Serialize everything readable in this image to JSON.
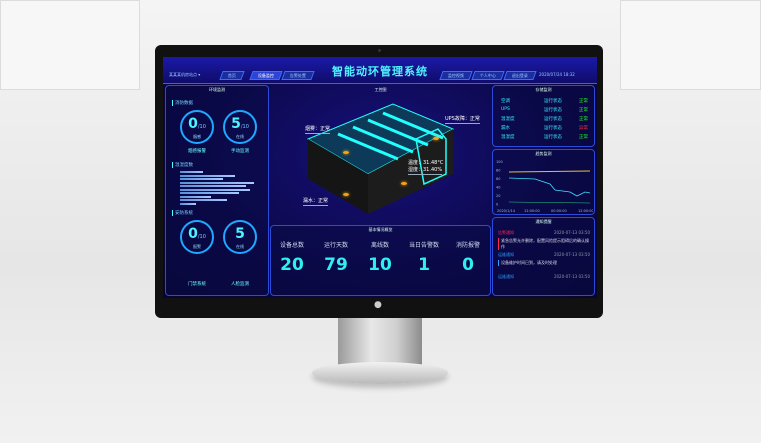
{
  "header": {
    "title": "智能动环管理系统",
    "location": "某某某机房站点 ▾",
    "datetime": "2020/07/24 18:32",
    "nav_left": [
      "首页",
      "设备监控",
      "告警处置"
    ],
    "nav_right": [
      "监控视频",
      "个人中心",
      "退出登录"
    ],
    "active": "设备监控"
  },
  "left": {
    "title": "环境监测",
    "fire": {
      "heading": "消防数据",
      "rings": [
        {
          "value": "0",
          "total": "/10",
          "unit": "烟感"
        },
        {
          "value": "5",
          "total": "/10",
          "unit": "在线"
        }
      ],
      "captions": [
        "烟感报警",
        "手动监测"
      ]
    },
    "bars": {
      "heading": "温湿度数",
      "values": [
        0.3,
        0.7,
        0.55,
        0.95,
        0.85,
        0.9,
        0.75,
        0.4,
        0.6,
        0.2
      ]
    },
    "security": {
      "heading": "安防系统",
      "rings": [
        {
          "value": "0",
          "total": "/10",
          "unit": "报警"
        },
        {
          "value": "5",
          "total": "",
          "unit": "在线"
        }
      ],
      "captions": [
        "门禁系统",
        "人脸监测"
      ]
    }
  },
  "center": {
    "title": "工控图",
    "labels": {
      "smoke": "烟雾：正常",
      "ups": "UPS故障：正常",
      "temp": "温度：31.48°C",
      "humidity": "湿度：31.40%",
      "water": "漏水：正常"
    },
    "stats_title": "基本情况概览",
    "stats": [
      {
        "label": "设备总数",
        "value": "20"
      },
      {
        "label": "运行天数",
        "value": "79"
      },
      {
        "label": "离线数",
        "value": "10"
      },
      {
        "label": "当日告警数",
        "value": "1"
      },
      {
        "label": "消防报警",
        "value": "0"
      }
    ]
  },
  "right": {
    "status_title": "存储监测",
    "status": [
      {
        "name": "空调",
        "state": "运行状态",
        "result": "正常",
        "ok": true
      },
      {
        "name": "UPS",
        "state": "运行状态",
        "result": "正常",
        "ok": true
      },
      {
        "name": "温湿度",
        "state": "运行状态",
        "result": "正常",
        "ok": true
      },
      {
        "name": "漏水",
        "state": "运行状态",
        "result": "异常",
        "ok": false
      },
      {
        "name": "温湿度",
        "state": "运行状态",
        "result": "正常",
        "ok": true
      }
    ],
    "chart_title": "趋势监测",
    "y_ticks": [
      "100",
      "80",
      "60",
      "40",
      "20",
      "0"
    ],
    "x_ticks": [
      "2020/1/14",
      "12:00:00",
      "00:00:00",
      "12:00:00"
    ],
    "alarm_title": "通知提醒",
    "alarms": [
      {
        "type": "告警通知",
        "time": "2020-07-13 03:50",
        "text": "紧急告警允许删除，配置风险提示阻碍后的确认操作",
        "color": "#ff2b4a"
      },
      {
        "type": "运维通知",
        "time": "2020-07-13 03:50",
        "text": "设备维护时间已到，请及时处理",
        "color": "#2a9dff"
      },
      {
        "type": "运维通知",
        "time": "2020-07-13 03:50",
        "text": "",
        "color": "#2a9dff"
      }
    ]
  }
}
